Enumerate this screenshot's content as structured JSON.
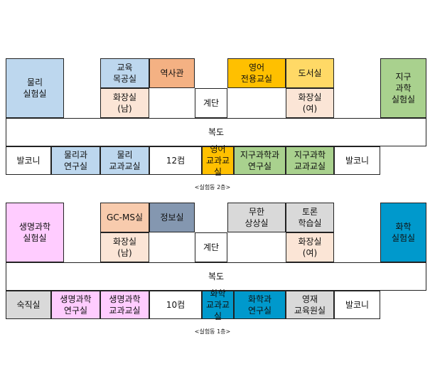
{
  "colors": {
    "blue": "#bdd7ee",
    "peach": "#f8cbad",
    "orange": "#f4b183",
    "gold": "#ffc000",
    "yellow": "#ffd966",
    "green": "#a9d18e",
    "pink": "#ffccff",
    "slate": "#8497b0",
    "gray": "#d9d9d9",
    "teal": "#0099cc",
    "skin": "#fbe5d6",
    "white": "#ffffff"
  },
  "floors": [
    {
      "caption": "<실험동 2층>",
      "top_rooms": [
        {
          "label": "물리\n실험실",
          "color": "blue"
        },
        {
          "label": "교육\n목공실",
          "color": "blue"
        },
        {
          "label": "역사관",
          "color": "orange"
        },
        {
          "label": "영어\n전용교실",
          "color": "gold"
        },
        {
          "label": "도서실",
          "color": "yellow"
        },
        {
          "label": "지구\n과학\n실험실",
          "color": "green"
        }
      ],
      "mid_rooms": [
        {
          "label": "화장실\n(남)",
          "color": "skin"
        },
        {
          "label": "계단",
          "color": "white"
        },
        {
          "label": "화장실\n(여)",
          "color": "skin"
        }
      ],
      "corridor": "복도",
      "bottom_rooms": [
        {
          "label": "발코니",
          "color": "white"
        },
        {
          "label": "물리과\n연구실",
          "color": "blue"
        },
        {
          "label": "물리\n교과교실",
          "color": "blue"
        },
        {
          "label": "12컴",
          "color": "white"
        },
        {
          "label": "영어\n교과교실",
          "color": "gold"
        },
        {
          "label": "지구과학과\n연구실",
          "color": "green"
        },
        {
          "label": "지구과학\n교과교실",
          "color": "green"
        },
        {
          "label": "발코니",
          "color": "white"
        }
      ]
    },
    {
      "caption": "<실험동 1층>",
      "top_rooms": [
        {
          "label": "생명과학\n실험실",
          "color": "pink"
        },
        {
          "label": "GC-MS실",
          "color": "peach"
        },
        {
          "label": "정보실",
          "color": "slate"
        },
        {
          "label": "무한\n상상실",
          "color": "gray"
        },
        {
          "label": "토론\n학습실",
          "color": "gray"
        },
        {
          "label": "화학\n실험실",
          "color": "teal"
        }
      ],
      "mid_rooms": [
        {
          "label": "화장실\n(남)",
          "color": "skin"
        },
        {
          "label": "계단",
          "color": "white"
        },
        {
          "label": "화장실\n(여)",
          "color": "skin"
        }
      ],
      "corridor": "복도",
      "bottom_rooms": [
        {
          "label": "숙직실",
          "color": "gray"
        },
        {
          "label": "생명과학\n연구실",
          "color": "pink"
        },
        {
          "label": "생명과학\n교과교실",
          "color": "pink"
        },
        {
          "label": "10컴",
          "color": "white"
        },
        {
          "label": "화학\n교과교실",
          "color": "teal"
        },
        {
          "label": "화학과\n연구실",
          "color": "teal"
        },
        {
          "label": "영재\n교육원실",
          "color": "gray"
        },
        {
          "label": "발코니",
          "color": "white"
        }
      ]
    }
  ]
}
